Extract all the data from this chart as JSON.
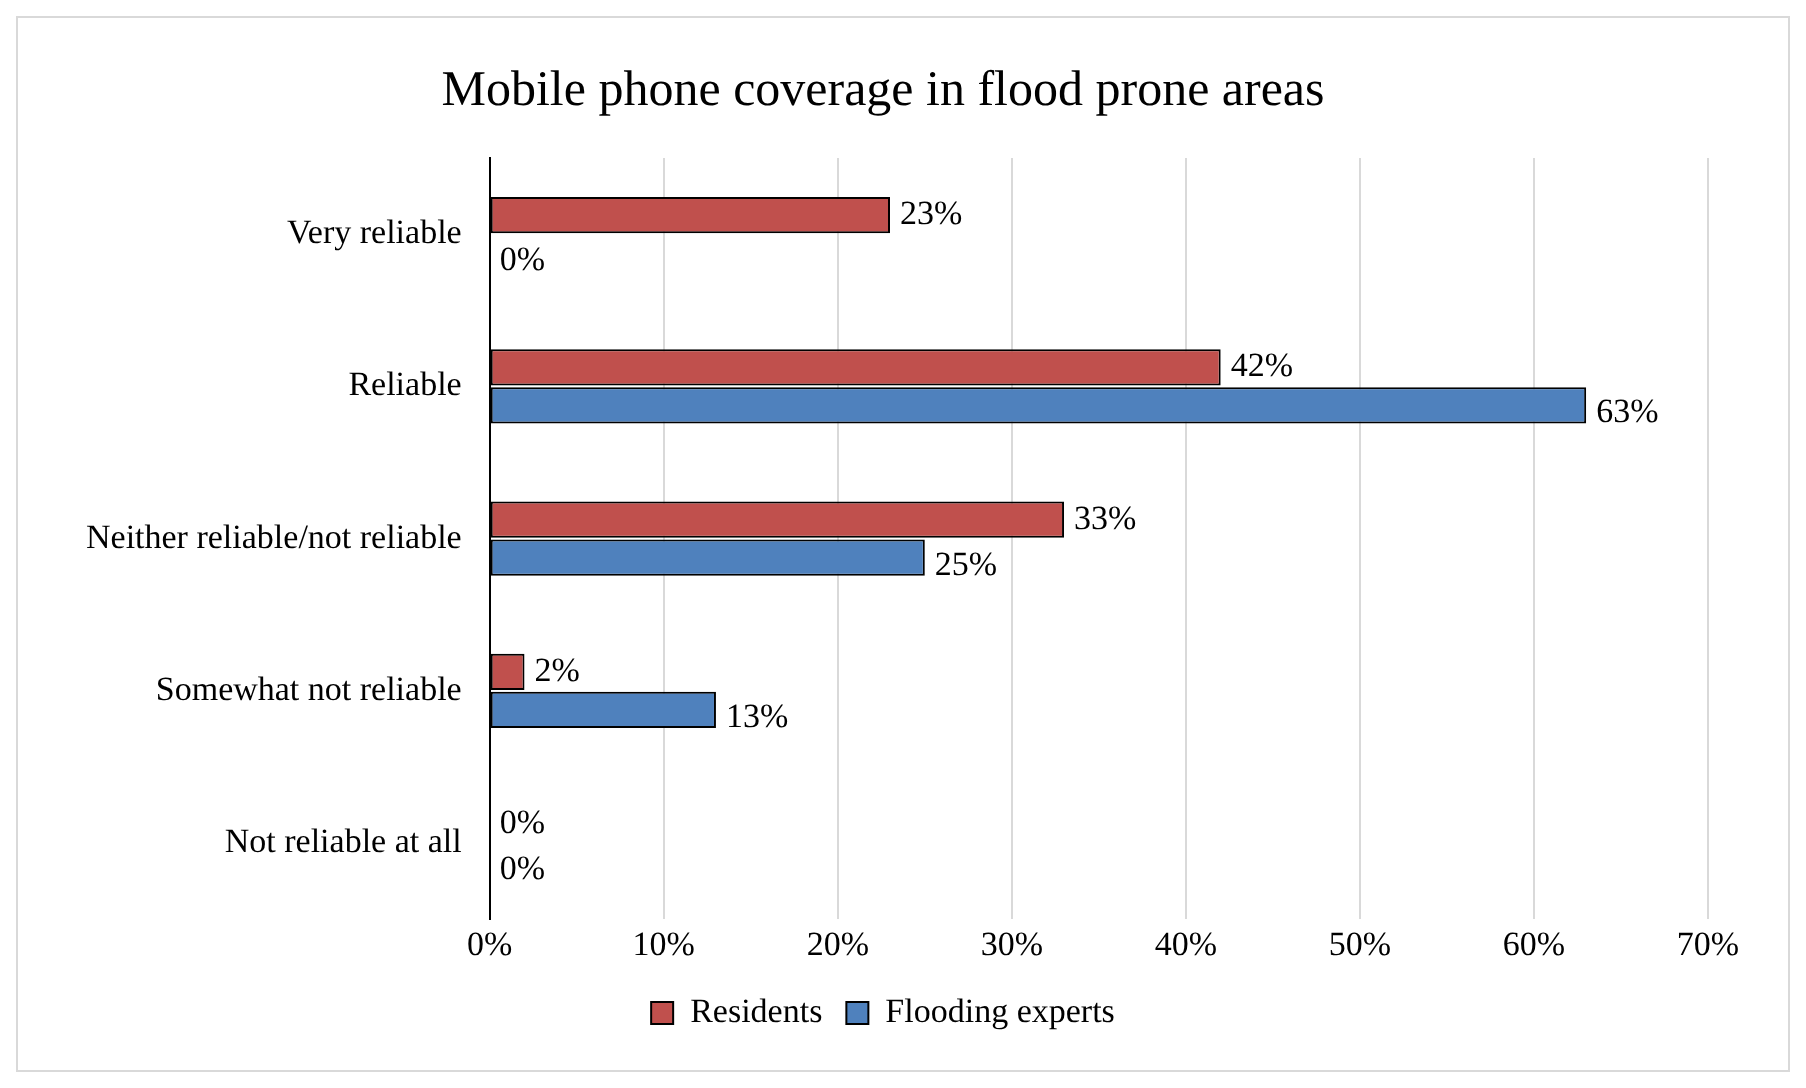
{
  "chart_data": {
    "type": "bar",
    "orientation": "horizontal",
    "title": "Mobile phone coverage in flood prone areas",
    "categories": [
      "Very reliable",
      "Reliable",
      "Neither reliable/not reliable",
      "Somewhat not reliable",
      "Not reliable at all"
    ],
    "series": [
      {
        "name": "Residents",
        "color": "#c0504d",
        "values": [
          23,
          42,
          33,
          2,
          0
        ],
        "value_labels": [
          "23%",
          "42%",
          "33%",
          "2%",
          "0%"
        ]
      },
      {
        "name": "Flooding experts",
        "color": "#4f81bd",
        "values": [
          0,
          63,
          25,
          13,
          0
        ],
        "value_labels": [
          "0%",
          "63%",
          "25%",
          "13%",
          "0%"
        ]
      }
    ],
    "xlim": [
      0,
      70
    ],
    "xticks": [
      {
        "value": 0,
        "label": "0%"
      },
      {
        "value": 10,
        "label": "10%"
      },
      {
        "value": 20,
        "label": "20%"
      },
      {
        "value": 30,
        "label": "30%"
      },
      {
        "value": 40,
        "label": "40%"
      },
      {
        "value": 50,
        "label": "50%"
      },
      {
        "value": 60,
        "label": "60%"
      },
      {
        "value": 70,
        "label": "70%"
      }
    ],
    "grid": "x",
    "legend": "bottom"
  }
}
